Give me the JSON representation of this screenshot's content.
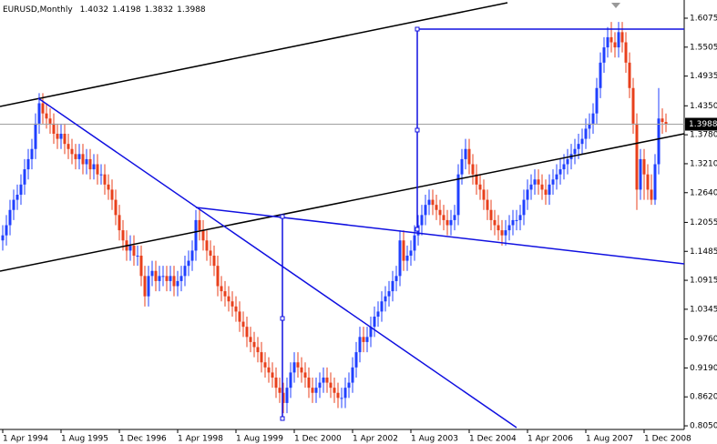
{
  "chart_data": {
    "type": "candlestick",
    "title": "EURUSD,Monthly",
    "xticks": [
      "1 Apr 1994",
      "1 Aug 1995",
      "1 Dec 1996",
      "1 Apr 1998",
      "1 Aug 1999",
      "1 Dec 2000",
      "1 Apr 2002",
      "1 Aug 2003",
      "1 Dec 2004",
      "1 Apr 2006",
      "1 Aug 2007",
      "1 Dec 2008"
    ],
    "ylim": [
      0.7979,
      1.6433
    ],
    "yticks": [
      1.6075,
      1.5505,
      1.4935,
      {
        "value": 1.435,
        "label": "1.4350"
      },
      {
        "value": 1.378,
        "label": "1.3780"
      },
      {
        "value": 1.321,
        "label": "1.3210"
      },
      {
        "value": 1.264,
        "label": "1.2640"
      },
      1.2055,
      1.1485,
      1.0915,
      1.0345,
      {
        "value": 0.976,
        "label": "0.9760"
      },
      {
        "value": 0.919,
        "label": "0.9190"
      },
      {
        "value": 0.862,
        "label": "0.8620"
      },
      {
        "value": 0.805,
        "label": "0.8050"
      }
    ],
    "up_color": "#2040ff",
    "down_color": "#e8401c",
    "open": [
      1.17,
      1.18,
      1.2,
      1.23,
      1.25,
      1.26,
      1.28,
      1.31,
      1.33,
      1.35,
      1.4,
      1.44,
      1.42,
      1.41,
      1.4,
      1.38,
      1.37,
      1.38,
      1.36,
      1.35,
      1.34,
      1.33,
      1.34,
      1.32,
      1.33,
      1.31,
      1.32,
      1.3,
      1.3,
      1.28,
      1.27,
      1.25,
      1.22,
      1.19,
      1.17,
      1.15,
      1.16,
      1.14,
      1.14,
      1.1,
      1.06,
      1.1,
      1.11,
      1.09,
      1.1,
      1.1,
      1.09,
      1.1,
      1.08,
      1.09,
      1.1,
      1.12,
      1.13,
      1.15,
      1.21,
      1.19,
      1.17,
      1.15,
      1.14,
      1.12,
      1.08,
      1.07,
      1.06,
      1.05,
      1.04,
      1.03,
      1.01,
      1,
      0.98,
      0.97,
      0.96,
      0.95,
      0.93,
      0.92,
      0.91,
      0.9,
      0.88,
      0.87,
      0.85,
      0.88,
      0.91,
      0.93,
      0.92,
      0.91,
      0.9,
      0.88,
      0.87,
      0.88,
      0.89,
      0.9,
      0.89,
      0.88,
      0.87,
      0.86,
      0.86,
      0.88,
      0.89,
      0.92,
      0.95,
      0.98,
      0.97,
      0.98,
      1,
      1.02,
      1.03,
      1.05,
      1.06,
      1.07,
      1.09,
      1.1,
      1.17,
      1.13,
      1.14,
      1.15,
      1.18,
      1.2,
      1.22,
      1.24,
      1.25,
      1.24,
      1.23,
      1.22,
      1.21,
      1.2,
      1.21,
      1.22,
      1.3,
      1.33,
      1.35,
      1.32,
      1.3,
      1.28,
      1.27,
      1.25,
      1.23,
      1.21,
      1.2,
      1.19,
      1.18,
      1.19,
      1.2,
      1.21,
      1.21,
      1.22,
      1.25,
      1.27,
      1.28,
      1.29,
      1.28,
      1.27,
      1.26,
      1.28,
      1.29,
      1.3,
      1.31,
      1.32,
      1.33,
      1.34,
      1.35,
      1.36,
      1.37,
      1.39,
      1.4,
      1.42,
      1.47,
      1.52,
      1.55,
      1.57,
      1.56,
      1.55,
      1.58,
      1.56,
      1.52,
      1.47,
      1.4,
      1.27,
      1.33,
      1.3,
      1.27,
      1.25,
      1.32,
      1.41,
      1.4032
    ],
    "high": [
      1.2,
      1.22,
      1.25,
      1.27,
      1.28,
      1.3,
      1.33,
      1.35,
      1.37,
      1.42,
      1.46,
      1.46,
      1.44,
      1.43,
      1.42,
      1.4,
      1.4,
      1.4,
      1.38,
      1.37,
      1.36,
      1.36,
      1.36,
      1.35,
      1.35,
      1.34,
      1.34,
      1.32,
      1.32,
      1.3,
      1.29,
      1.27,
      1.24,
      1.21,
      1.19,
      1.18,
      1.18,
      1.16,
      1.16,
      1.12,
      1.12,
      1.13,
      1.13,
      1.12,
      1.12,
      1.12,
      1.12,
      1.12,
      1.11,
      1.12,
      1.14,
      1.15,
      1.17,
      1.23,
      1.23,
      1.21,
      1.19,
      1.17,
      1.16,
      1.14,
      1.1,
      1.09,
      1.08,
      1.07,
      1.06,
      1.05,
      1.03,
      1.02,
      1,
      0.99,
      0.98,
      0.97,
      0.95,
      0.94,
      0.93,
      0.92,
      0.9,
      0.89,
      0.9,
      0.93,
      0.95,
      0.95,
      0.94,
      0.93,
      0.92,
      0.9,
      0.9,
      0.91,
      0.92,
      0.92,
      0.91,
      0.9,
      0.89,
      0.88,
      0.9,
      0.91,
      0.94,
      0.97,
      1,
      1,
      1,
      1.02,
      1.04,
      1.05,
      1.07,
      1.08,
      1.09,
      1.11,
      1.12,
      1.19,
      1.19,
      1.16,
      1.17,
      1.2,
      1.22,
      1.24,
      1.26,
      1.27,
      1.27,
      1.26,
      1.25,
      1.24,
      1.23,
      1.23,
      1.24,
      1.32,
      1.35,
      1.37,
      1.37,
      1.34,
      1.32,
      1.3,
      1.29,
      1.27,
      1.25,
      1.23,
      1.22,
      1.21,
      1.21,
      1.22,
      1.23,
      1.23,
      1.24,
      1.27,
      1.29,
      1.3,
      1.31,
      1.31,
      1.3,
      1.29,
      1.3,
      1.31,
      1.32,
      1.33,
      1.34,
      1.35,
      1.36,
      1.37,
      1.38,
      1.39,
      1.41,
      1.42,
      1.44,
      1.49,
      1.54,
      1.57,
      1.59,
      1.6,
      1.58,
      1.6,
      1.6,
      1.58,
      1.54,
      1.49,
      1.42,
      1.35,
      1.35,
      1.32,
      1.3,
      1.34,
      1.47,
      1.43,
      1.4198
    ],
    "low": [
      1.15,
      1.16,
      1.18,
      1.21,
      1.23,
      1.24,
      1.26,
      1.29,
      1.31,
      1.33,
      1.38,
      1.4,
      1.39,
      1.38,
      1.36,
      1.35,
      1.35,
      1.34,
      1.33,
      1.32,
      1.31,
      1.31,
      1.3,
      1.3,
      1.29,
      1.29,
      1.28,
      1.28,
      1.26,
      1.25,
      1.23,
      1.2,
      1.17,
      1.15,
      1.13,
      1.13,
      1.12,
      1.12,
      1.08,
      1.04,
      1.04,
      1.08,
      1.07,
      1.07,
      1.08,
      1.07,
      1.07,
      1.06,
      1.06,
      1.07,
      1.08,
      1.1,
      1.11,
      1.13,
      1.17,
      1.15,
      1.13,
      1.12,
      1.1,
      1.06,
      1.05,
      1.04,
      1.03,
      1.02,
      1.01,
      0.99,
      0.98,
      0.96,
      0.95,
      0.94,
      0.93,
      0.91,
      0.9,
      0.89,
      0.88,
      0.86,
      0.85,
      0.83,
      0.83,
      0.86,
      0.89,
      0.9,
      0.89,
      0.88,
      0.86,
      0.85,
      0.85,
      0.86,
      0.87,
      0.87,
      0.86,
      0.85,
      0.84,
      0.84,
      0.84,
      0.86,
      0.87,
      0.9,
      0.93,
      0.95,
      0.95,
      0.96,
      0.98,
      1,
      1.01,
      1.03,
      1.04,
      1.05,
      1.07,
      1.08,
      1.11,
      1.11,
      1.12,
      1.13,
      1.16,
      1.18,
      1.2,
      1.22,
      1.22,
      1.21,
      1.2,
      1.19,
      1.18,
      1.18,
      1.19,
      1.2,
      1.28,
      1.31,
      1.3,
      1.28,
      1.26,
      1.25,
      1.23,
      1.21,
      1.19,
      1.18,
      1.17,
      1.16,
      1.16,
      1.17,
      1.18,
      1.19,
      1.19,
      1.2,
      1.23,
      1.25,
      1.26,
      1.26,
      1.25,
      1.24,
      1.24,
      1.26,
      1.27,
      1.28,
      1.29,
      1.3,
      1.31,
      1.32,
      1.33,
      1.34,
      1.35,
      1.37,
      1.38,
      1.4,
      1.45,
      1.5,
      1.53,
      1.54,
      1.53,
      1.53,
      1.54,
      1.5,
      1.45,
      1.38,
      1.23,
      1.25,
      1.25,
      1.25,
      1.24,
      1.24,
      1.3,
      1.38,
      1.3832
    ],
    "close": [
      1.18,
      1.2,
      1.23,
      1.25,
      1.26,
      1.28,
      1.31,
      1.33,
      1.35,
      1.4,
      1.44,
      1.42,
      1.41,
      1.4,
      1.38,
      1.37,
      1.38,
      1.36,
      1.35,
      1.34,
      1.33,
      1.34,
      1.32,
      1.33,
      1.31,
      1.32,
      1.3,
      1.3,
      1.28,
      1.27,
      1.25,
      1.22,
      1.19,
      1.17,
      1.15,
      1.16,
      1.14,
      1.14,
      1.1,
      1.06,
      1.1,
      1.11,
      1.09,
      1.1,
      1.1,
      1.09,
      1.1,
      1.08,
      1.09,
      1.1,
      1.12,
      1.13,
      1.15,
      1.21,
      1.19,
      1.17,
      1.15,
      1.14,
      1.12,
      1.08,
      1.07,
      1.06,
      1.05,
      1.04,
      1.03,
      1.01,
      1,
      0.98,
      0.97,
      0.96,
      0.95,
      0.93,
      0.92,
      0.91,
      0.9,
      0.88,
      0.87,
      0.85,
      0.88,
      0.91,
      0.93,
      0.92,
      0.91,
      0.9,
      0.88,
      0.87,
      0.88,
      0.89,
      0.9,
      0.89,
      0.88,
      0.87,
      0.86,
      0.86,
      0.88,
      0.89,
      0.92,
      0.95,
      0.98,
      0.97,
      0.98,
      1,
      1.02,
      1.03,
      1.05,
      1.06,
      1.07,
      1.09,
      1.1,
      1.17,
      1.13,
      1.14,
      1.15,
      1.18,
      1.2,
      1.22,
      1.24,
      1.25,
      1.24,
      1.23,
      1.22,
      1.21,
      1.2,
      1.21,
      1.22,
      1.3,
      1.33,
      1.35,
      1.32,
      1.3,
      1.28,
      1.27,
      1.25,
      1.23,
      1.21,
      1.2,
      1.19,
      1.18,
      1.19,
      1.2,
      1.21,
      1.21,
      1.22,
      1.25,
      1.27,
      1.28,
      1.29,
      1.28,
      1.27,
      1.26,
      1.28,
      1.29,
      1.3,
      1.31,
      1.32,
      1.33,
      1.34,
      1.35,
      1.36,
      1.37,
      1.39,
      1.4,
      1.42,
      1.47,
      1.52,
      1.55,
      1.57,
      1.56,
      1.55,
      1.58,
      1.56,
      1.52,
      1.47,
      1.4,
      1.27,
      1.33,
      1.3,
      1.27,
      1.25,
      1.32,
      1.41,
      1.4032,
      1.3988
    ]
  }
}
